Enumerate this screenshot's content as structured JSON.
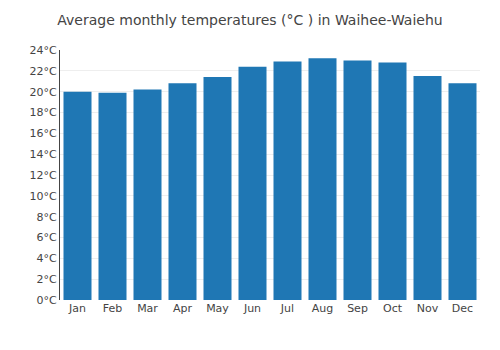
{
  "chart_data": {
    "type": "bar",
    "title": "Average monthly temperatures (°C ) in Waihee-Waiehu",
    "categories": [
      "Jan",
      "Feb",
      "Mar",
      "Apr",
      "May",
      "Jun",
      "Jul",
      "Aug",
      "Sep",
      "Oct",
      "Nov",
      "Dec"
    ],
    "values": [
      20.0,
      19.9,
      20.2,
      20.8,
      21.4,
      22.4,
      22.9,
      23.2,
      23.0,
      22.8,
      21.5,
      20.8
    ],
    "ylim": [
      0,
      24
    ],
    "yticks": [
      {
        "value": 0,
        "label": "0°C"
      },
      {
        "value": 2,
        "label": "2°C"
      },
      {
        "value": 4,
        "label": "4°C"
      },
      {
        "value": 6,
        "label": "6°C"
      },
      {
        "value": 8,
        "label": "8°C"
      },
      {
        "value": 10,
        "label": "10°C"
      },
      {
        "value": 12,
        "label": "12°C"
      },
      {
        "value": 14,
        "label": "14°C"
      },
      {
        "value": 16,
        "label": "16°C"
      },
      {
        "value": 18,
        "label": "18°C"
      },
      {
        "value": 20,
        "label": "20°C"
      },
      {
        "value": 22,
        "label": "22°C"
      },
      {
        "value": 24,
        "label": "24°C"
      }
    ],
    "grid": true
  }
}
